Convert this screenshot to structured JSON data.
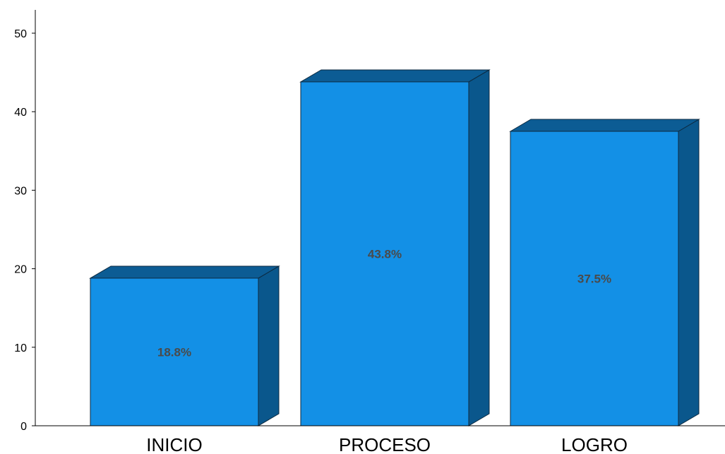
{
  "chart_data": {
    "type": "bar",
    "title": "",
    "xlabel": "",
    "ylabel": "",
    "categories": [
      "INICIO",
      "PROCESO",
      "LOGRO"
    ],
    "values": [
      18.8,
      43.8,
      37.5
    ],
    "data_labels": [
      "18.8%",
      "43.8%",
      "37.5%"
    ],
    "ylim": [
      0,
      50
    ],
    "yticks": [
      0,
      10,
      20,
      30,
      40,
      50
    ],
    "ytick_labels": [
      "0",
      "10",
      "20",
      "30",
      "40",
      "50"
    ],
    "grid": false,
    "legend": "none",
    "style": "3d-bar"
  },
  "colors": {
    "bar_front": "#1390e6",
    "bar_side": "#0a578c",
    "bar_top": "#0c5c94",
    "bar_outline": "#0d2a40",
    "axis": "#000000",
    "data_label": "#4a4a4a"
  }
}
